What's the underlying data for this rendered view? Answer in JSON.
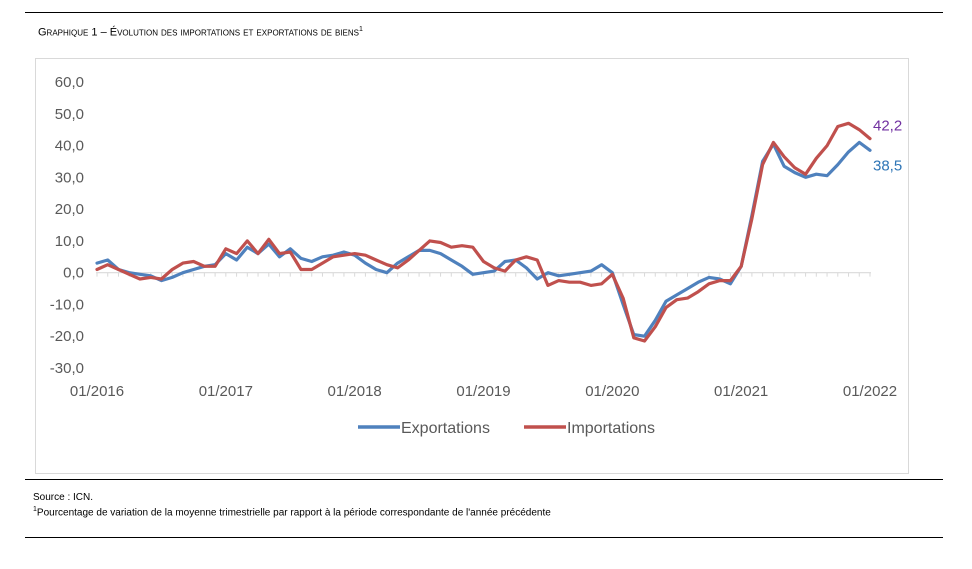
{
  "title": {
    "text": "Graphique 1 – Évolution des importations et exportations de biens",
    "footnote_mark": "1"
  },
  "source": "Source : ICN.",
  "note": {
    "mark": "1",
    "text": "Pourcentage de variation de la moyenne trimestrielle par rapport à la période correspondante de l'année précédente"
  },
  "chart_data": {
    "type": "line",
    "ylim": [
      -30,
      60
    ],
    "yticks": [
      -30,
      -20,
      -10,
      0,
      10,
      20,
      30,
      40,
      50,
      60
    ],
    "ytick_labels": [
      "-30,0",
      "-20,0",
      "-10,0",
      "0,0",
      "10,0",
      "20,0",
      "30,0",
      "40,0",
      "50,0",
      "60,0"
    ],
    "xtick_labels": [
      "01/2016",
      "01/2017",
      "01/2018",
      "01/2019",
      "01/2020",
      "01/2021",
      "01/2022"
    ],
    "x_start": "01/2016",
    "x_end": "03/2022",
    "grid": false,
    "legend_position": "bottom",
    "colors": {
      "Exportations": "#4f81bd",
      "Importations": "#c0504d"
    },
    "end_labels": {
      "Exportations": "38,5",
      "Importations": "42,2"
    },
    "series": [
      {
        "name": "Exportations",
        "values": [
          3.0,
          4.0,
          1.0,
          0.0,
          -0.5,
          -1.0,
          -2.5,
          -1.5,
          0.0,
          1.0,
          2.0,
          2.5,
          6.0,
          4.0,
          8.0,
          6.0,
          9.0,
          5.0,
          7.5,
          4.5,
          3.5,
          5.0,
          5.5,
          6.5,
          5.5,
          3.0,
          1.0,
          0.0,
          3.0,
          5.0,
          7.0,
          7.0,
          6.0,
          4.0,
          2.0,
          -0.5,
          0.0,
          0.5,
          3.5,
          4.0,
          1.5,
          -2.0,
          0.0,
          -1.0,
          -0.5,
          0.0,
          0.5,
          2.5,
          0.0,
          -10.0,
          -19.5,
          -20.0,
          -15.0,
          -9.0,
          -7.0,
          -5.0,
          -3.0,
          -1.5,
          -2.0,
          -3.5,
          2.0,
          18.0,
          35.0,
          40.5,
          33.5,
          31.5,
          30.0,
          31.0,
          30.5,
          34.0,
          38.0,
          41.0,
          38.5
        ]
      },
      {
        "name": "Importations",
        "values": [
          1.0,
          2.5,
          1.0,
          -0.5,
          -2.0,
          -1.5,
          -2.0,
          1.0,
          3.0,
          3.5,
          2.0,
          2.0,
          7.5,
          6.0,
          10.0,
          6.0,
          10.5,
          6.0,
          6.5,
          1.0,
          1.0,
          3.0,
          5.0,
          5.5,
          6.0,
          5.5,
          4.0,
          2.5,
          1.5,
          4.0,
          7.0,
          10.0,
          9.5,
          8.0,
          8.5,
          8.0,
          3.5,
          1.5,
          0.5,
          4.0,
          5.0,
          4.0,
          -4.0,
          -2.5,
          -3.0,
          -3.0,
          -4.0,
          -3.5,
          -0.5,
          -8.0,
          -20.5,
          -21.5,
          -17.0,
          -11.0,
          -8.5,
          -8.0,
          -6.0,
          -3.5,
          -2.5,
          -2.5,
          2.0,
          17.0,
          34.0,
          41.0,
          36.5,
          33.0,
          31.0,
          36.0,
          40.0,
          46.0,
          47.0,
          45.0,
          42.2
        ]
      }
    ]
  }
}
